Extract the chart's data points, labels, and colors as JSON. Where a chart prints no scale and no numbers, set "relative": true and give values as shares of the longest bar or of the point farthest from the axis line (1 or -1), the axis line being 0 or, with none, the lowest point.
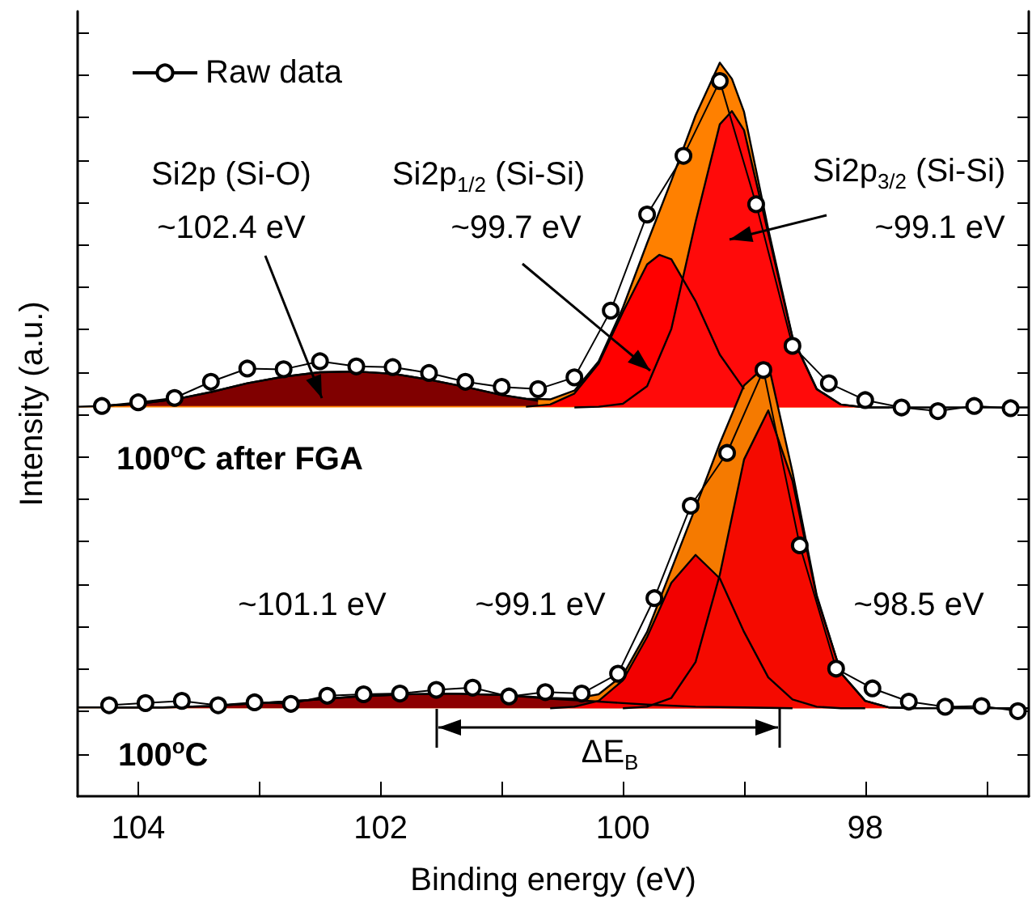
{
  "chart_data": {
    "type": "area",
    "relative": true,
    "xlabel": "Binding energy (eV)",
    "ylabel": "Intensity (a.u.)",
    "xlim": [
      104.5,
      96.65
    ],
    "xticks": [
      104,
      {
        "value": 103,
        "label": null
      },
      102,
      {
        "value": 101,
        "label": null
      },
      100,
      {
        "value": 99,
        "label": null
      },
      98,
      {
        "value": 97,
        "label": null
      }
    ],
    "grid": false,
    "legend": "top left",
    "line_style": "solid",
    "series": [
      {
        "color": "#ff8000",
        "x": [
          104.5,
          104.3,
          104.0,
          103.7,
          103.4,
          103.1,
          102.8,
          102.5,
          102.2,
          101.9,
          101.6,
          101.3,
          101.0,
          100.8,
          100.6,
          100.4,
          100.2,
          100.0,
          99.8,
          99.6,
          99.4,
          99.2,
          99.1,
          99.0,
          98.8,
          98.6,
          98.4,
          98.2,
          98.0,
          97.7,
          97.4,
          97.1,
          96.8,
          96.65
        ],
        "values": [
          0.531,
          0.532,
          0.535,
          0.541,
          0.551,
          0.563,
          0.572,
          0.578,
          0.579,
          0.576,
          0.568,
          0.558,
          0.547,
          0.542,
          0.541,
          0.553,
          0.593,
          0.666,
          0.754,
          0.839,
          0.928,
          1,
          0.978,
          0.933,
          0.773,
          0.626,
          0.555,
          0.534,
          0.53,
          0.53,
          0.53,
          0.53,
          0.53,
          0.53
        ]
      },
      {
        "color": "#800000",
        "x": [
          104.3,
          104.0,
          103.7,
          103.4,
          103.1,
          102.8,
          102.5,
          102.2,
          101.9,
          101.6,
          101.3,
          101.0,
          100.7
        ],
        "values": [
          0.532,
          0.535,
          0.541,
          0.551,
          0.563,
          0.572,
          0.578,
          0.579,
          0.576,
          0.568,
          0.558,
          0.547,
          0.539
        ]
      },
      {
        "color": "#ff0000",
        "x": [
          100.8,
          100.6,
          100.4,
          100.2,
          100.0,
          99.8,
          99.7,
          99.6,
          99.4,
          99.2,
          99.0
        ],
        "values": [
          0.531,
          0.534,
          0.549,
          0.59,
          0.66,
          0.725,
          0.738,
          0.732,
          0.675,
          0.602,
          0.555
        ]
      },
      {
        "color": "#ff0a0a",
        "x": [
          100.4,
          100.2,
          100.0,
          99.8,
          99.6,
          99.4,
          99.2,
          99.1,
          99.0,
          98.8,
          98.6,
          98.4,
          98.2,
          98.0,
          97.8
        ],
        "values": [
          0.53,
          0.531,
          0.535,
          0.559,
          0.637,
          0.783,
          0.916,
          0.934,
          0.908,
          0.767,
          0.625,
          0.555,
          0.534,
          0.53,
          0.53
        ]
      },
      {
        "color": "#f57a00",
        "x": [
          104.5,
          104.2,
          103.8,
          103.4,
          103.0,
          102.6,
          102.2,
          101.8,
          101.4,
          101.0,
          100.6,
          100.4,
          100.2,
          100.0,
          99.8,
          99.6,
          99.4,
          99.2,
          99.0,
          98.8,
          98.6,
          98.4,
          98.2,
          98.0,
          97.8,
          97.6,
          97.2,
          96.65
        ],
        "values": [
          0.121,
          0.121,
          0.121,
          0.123,
          0.127,
          0.131,
          0.136,
          0.139,
          0.14,
          0.138,
          0.134,
          0.133,
          0.139,
          0.165,
          0.224,
          0.309,
          0.394,
          0.481,
          0.56,
          0.59,
          0.442,
          0.274,
          0.168,
          0.13,
          0.121,
          0.12,
          0.12,
          0.12
        ]
      },
      {
        "color": "#8c0000",
        "x": [
          104.2,
          103.8,
          103.4,
          103.0,
          102.6,
          102.2,
          101.8,
          101.4,
          101.0,
          100.6,
          100.2,
          99.8,
          99.4,
          99.0,
          98.6
        ],
        "values": [
          0.121,
          0.121,
          0.123,
          0.127,
          0.131,
          0.136,
          0.139,
          0.14,
          0.138,
          0.133,
          0.129,
          0.125,
          0.122,
          0.121,
          0.12
        ]
      },
      {
        "color": "#f20000",
        "x": [
          100.6,
          100.4,
          100.2,
          100.0,
          99.8,
          99.6,
          99.4,
          99.2,
          99.0,
          98.8,
          98.6,
          98.4,
          98.2,
          98.0
        ],
        "values": [
          0.12,
          0.122,
          0.13,
          0.158,
          0.217,
          0.291,
          0.329,
          0.297,
          0.224,
          0.162,
          0.132,
          0.122,
          0.12,
          0.12
        ]
      },
      {
        "color": "#f50a00",
        "x": [
          100.0,
          99.8,
          99.6,
          99.4,
          99.2,
          99.0,
          98.8,
          98.6,
          98.4,
          98.2,
          98.0,
          97.8,
          97.6
        ],
        "values": [
          0.12,
          0.122,
          0.134,
          0.183,
          0.302,
          0.459,
          0.526,
          0.43,
          0.272,
          0.168,
          0.13,
          0.121,
          0.12
        ]
      },
      {
        "type": "line",
        "marker": "circle",
        "name": "Raw data",
        "color": "#000000",
        "x": [
          104.3,
          104.0,
          103.7,
          103.4,
          103.1,
          102.8,
          102.5,
          102.2,
          101.9,
          101.6,
          101.3,
          101.0,
          100.7,
          100.4,
          100.1,
          99.8,
          99.5,
          99.2,
          98.9,
          98.6,
          98.3,
          98.0,
          97.7,
          97.4,
          97.1,
          96.8
        ],
        "values": [
          0.532,
          0.537,
          0.543,
          0.565,
          0.583,
          0.582,
          0.593,
          0.586,
          0.585,
          0.577,
          0.565,
          0.558,
          0.555,
          0.571,
          0.662,
          0.793,
          0.873,
          0.975,
          0.807,
          0.614,
          0.563,
          0.54,
          0.53,
          0.525,
          0.532,
          0.529
        ]
      },
      {
        "type": "line",
        "marker": "circle",
        "color": "#000000",
        "x": [
          104.24,
          103.94,
          103.64,
          103.34,
          103.04,
          102.74,
          102.44,
          102.14,
          101.84,
          101.54,
          101.24,
          100.94,
          100.64,
          100.34,
          100.04,
          99.74,
          99.44,
          99.14,
          98.84,
          98.54,
          98.24,
          97.94,
          97.64,
          97.34,
          97.04,
          96.74
        ],
        "values": [
          0.124,
          0.127,
          0.13,
          0.124,
          0.128,
          0.126,
          0.137,
          0.139,
          0.14,
          0.145,
          0.148,
          0.136,
          0.142,
          0.14,
          0.167,
          0.27,
          0.396,
          0.468,
          0.581,
          0.342,
          0.174,
          0.147,
          0.129,
          0.122,
          0.123,
          0.116
        ]
      }
    ],
    "annotations": [
      "Si2p (Si-O)",
      "~102.4 eV",
      "Si2p$_{1/2}$ (Si-Si)",
      "~99.7 eV",
      "Si2p$_{3/2}$ (Si-Si)",
      "~99.1 eV",
      "100$^{o}$C after FGA",
      "~101.1 eV",
      "~99.1 eV",
      "~98.5 eV",
      "100$^{o}$C",
      "ΔE$_{B}$"
    ]
  }
}
